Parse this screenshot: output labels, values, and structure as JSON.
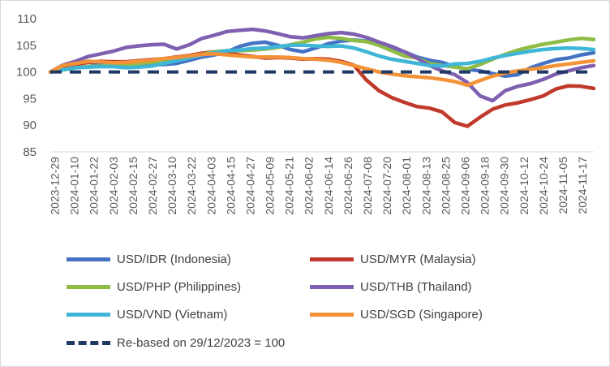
{
  "chart_data": {
    "type": "line",
    "title": "",
    "xlabel": "",
    "ylabel": "",
    "ylim": [
      85,
      110
    ],
    "yticks": [
      85,
      90,
      95,
      100,
      105,
      110
    ],
    "grid": false,
    "legend_position": "bottom",
    "x_tick_labels": [
      "2023-12-29",
      "2024-01-10",
      "2024-01-22",
      "2024-02-03",
      "2024-02-15",
      "2024-02-27",
      "2024-03-10",
      "2024-03-22",
      "2024-04-03",
      "2024-04-15",
      "2024-04-27",
      "2024-05-09",
      "2024-05-21",
      "2024-06-02",
      "2024-06-14",
      "2024-06-26",
      "2024-07-08",
      "2024-07-20",
      "2024-08-01",
      "2024-08-13",
      "2024-08-25",
      "2024-09-06",
      "2024-09-18",
      "2024-09-30",
      "2024-10-12",
      "2024-10-24",
      "2024-11-05",
      "2024-11-17"
    ],
    "series": [
      {
        "name": "USD/IDR (Indonesia)",
        "color": "#4472c4",
        "values": [
          100,
          100.8,
          101.4,
          101.8,
          101.5,
          101.6,
          101.8,
          101.5,
          101.3,
          101.4,
          101.6,
          102.2,
          102.8,
          103.2,
          103.8,
          104.8,
          105.4,
          105.6,
          105,
          104.2,
          103.8,
          104.5,
          105.3,
          105.8,
          106,
          105.8,
          105.2,
          104.6,
          103.8,
          102.8,
          102.2,
          101.8,
          101,
          100.5,
          100.2,
          99.7,
          99.2,
          99.5,
          100.8,
          101.6,
          102.3,
          102.6,
          103.2,
          103.6
        ]
      },
      {
        "name": "USD/MYR (Malaysia)",
        "color": "#c0392b",
        "values": [
          100,
          100.9,
          101.4,
          101.8,
          102,
          101.9,
          101.9,
          102.1,
          102.3,
          102.5,
          102.8,
          103.1,
          103.5,
          103.8,
          103.6,
          103.2,
          102.9,
          102.6,
          102.7,
          102.6,
          102.4,
          102.5,
          102.4,
          102,
          101.3,
          98.5,
          96.5,
          95.2,
          94.3,
          93.5,
          93.2,
          92.5,
          90.5,
          89.8,
          91.5,
          93,
          93.8,
          94.2,
          94.8,
          95.5,
          96.8,
          97.4,
          97.3,
          96.9
        ]
      },
      {
        "name": "USD/PHP (Philippines)",
        "color": "#8fbc45",
        "values": [
          100,
          100.4,
          100.8,
          101,
          101.1,
          101.3,
          101.2,
          101.6,
          101.8,
          102,
          102.3,
          102.8,
          103.3,
          103.8,
          104,
          104,
          104.1,
          104.3,
          104.6,
          105.1,
          105.6,
          106.2,
          106.5,
          106.3,
          105.9,
          105.7,
          105,
          104,
          103,
          102.6,
          101.6,
          101.2,
          100.9,
          100.6,
          101.4,
          102.4,
          103.3,
          104.1,
          104.7,
          105.2,
          105.6,
          106,
          106.3,
          106.1
        ]
      },
      {
        "name": "USD/THB (Thailand)",
        "color": "#7f5fb0",
        "values": [
          100,
          101.3,
          102,
          102.9,
          103.4,
          103.9,
          104.6,
          104.9,
          105.1,
          105.2,
          104.3,
          105.1,
          106.3,
          106.9,
          107.6,
          107.8,
          108,
          107.7,
          107.2,
          106.6,
          106.4,
          106.8,
          107.2,
          107.4,
          107.1,
          106.5,
          105.6,
          104.8,
          103.8,
          102.6,
          101.2,
          100.2,
          99.5,
          98,
          95.5,
          94.6,
          96.5,
          97.3,
          97.8,
          98.6,
          99.6,
          100.2,
          100.8,
          101.2
        ]
      },
      {
        "name": "USD/VND (Vietnam)",
        "color": "#3fb6d6",
        "values": [
          100,
          100.4,
          100.8,
          100.9,
          101,
          101,
          100.8,
          100.9,
          101.1,
          101.6,
          102.1,
          102.6,
          103.2,
          103.6,
          104,
          104.1,
          104.4,
          104.5,
          104.8,
          105,
          105,
          104.9,
          104.8,
          104.9,
          104.5,
          103.8,
          103,
          102.4,
          102,
          101.6,
          101.2,
          101.1,
          101.5,
          101.6,
          102,
          102.6,
          103.1,
          103.5,
          103.9,
          104.2,
          104.4,
          104.5,
          104.4,
          104.2
        ]
      },
      {
        "name": "USD/SGD (Singapore)",
        "color": "#f39237",
        "values": [
          100,
          101.2,
          101.6,
          102,
          101.9,
          101.7,
          101.8,
          102,
          102.2,
          102.5,
          102.7,
          103,
          103.3,
          103.4,
          103.2,
          103,
          102.8,
          102.8,
          102.8,
          102.7,
          102.5,
          102.4,
          102.2,
          101.8,
          101.2,
          100.6,
          100,
          99.6,
          99.3,
          99.1,
          98.9,
          98.6,
          98.2,
          97.5,
          98.4,
          99.2,
          99.8,
          100.2,
          100.5,
          100.8,
          101.2,
          101.5,
          101.8,
          102.1
        ]
      },
      {
        "name": "Re-based on 29/12/2023 = 100",
        "color": "#1f3864",
        "dashed": true,
        "values": [
          100,
          100
        ]
      }
    ]
  }
}
